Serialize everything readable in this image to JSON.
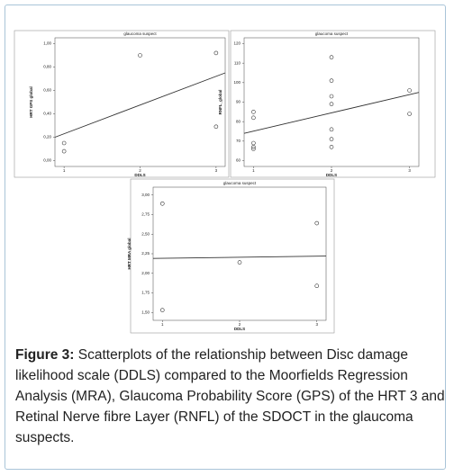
{
  "chart_data": [
    {
      "type": "scatter",
      "title": "glaucoma suspect",
      "x_label": "DDLS",
      "y_label": "HRT GPS global",
      "x": [
        1,
        1,
        2,
        3,
        3
      ],
      "y": [
        0.15,
        0.08,
        0.9,
        0.92,
        0.29
      ],
      "xlim": [
        0.88,
        3.12
      ],
      "xticks": [
        1,
        2,
        3
      ],
      "ylim": [
        -0.05,
        1.05
      ],
      "yticks": [
        {
          "value": 0,
          "label": "0,00"
        },
        {
          "value": 0.2,
          "label": "0,20"
        },
        {
          "value": 0.4,
          "label": "0,40"
        },
        {
          "value": 0.6,
          "label": "0,60"
        },
        {
          "value": 0.8,
          "label": "0,80"
        },
        {
          "value": 1,
          "label": "1,00"
        }
      ],
      "fit_line": {
        "x": [
          0.88,
          3.12
        ],
        "y": [
          0.2,
          0.75
        ]
      },
      "color": "#333333"
    },
    {
      "type": "scatter",
      "title": "glaucoma suspect",
      "x_label": "DDLS",
      "y_label": "RNFL_global",
      "x": [
        1,
        1,
        1,
        1,
        1,
        2,
        2,
        2,
        2,
        2,
        2,
        2,
        3,
        3
      ],
      "y": [
        85,
        82,
        69,
        67,
        66,
        113,
        101,
        93,
        89,
        76,
        71,
        67,
        96,
        84
      ],
      "xlim": [
        0.88,
        3.12
      ],
      "xticks": [
        1,
        2,
        3
      ],
      "ylim": [
        57,
        123
      ],
      "yticks": [
        60,
        70,
        80,
        90,
        100,
        110,
        120
      ],
      "fit_line": {
        "x": [
          0.88,
          3.12
        ],
        "y": [
          74,
          95
        ]
      },
      "color": "#333333"
    },
    {
      "type": "scatter",
      "title": "glaucoma suspect",
      "x_label": "DDLS",
      "y_label": "HRT MRA global",
      "x": [
        1,
        1,
        2,
        3,
        3
      ],
      "y": [
        2.89,
        1.53,
        2.14,
        2.64,
        1.84
      ],
      "xlim": [
        0.88,
        3.12
      ],
      "xticks": [
        1,
        2,
        3
      ],
      "ylim": [
        1.4,
        3.1
      ],
      "yticks": [
        {
          "value": 1.5,
          "label": "1,50"
        },
        {
          "value": 1.75,
          "label": "1,75"
        },
        {
          "value": 2,
          "label": "2,00"
        },
        {
          "value": 2.25,
          "label": "2,25"
        },
        {
          "value": 2.5,
          "label": "2,50"
        },
        {
          "value": 2.75,
          "label": "2,75"
        },
        {
          "value": 3,
          "label": "3,00"
        }
      ],
      "fit_line": {
        "x": [
          0.88,
          3.12
        ],
        "y": [
          2.19,
          2.22
        ]
      },
      "color": "#333333"
    }
  ],
  "caption": {
    "label": "Figure 3:",
    "text": " Scatterplots of the relationship between Disc damage likelihood scale (DDLS) compared to the Moorfields Regression Analysis (MRA), Glaucoma Probability Score (GPS) of the HRT 3 and Retinal Nerve fibre Layer (RNFL) of the SDOCT in the glaucoma suspects."
  }
}
